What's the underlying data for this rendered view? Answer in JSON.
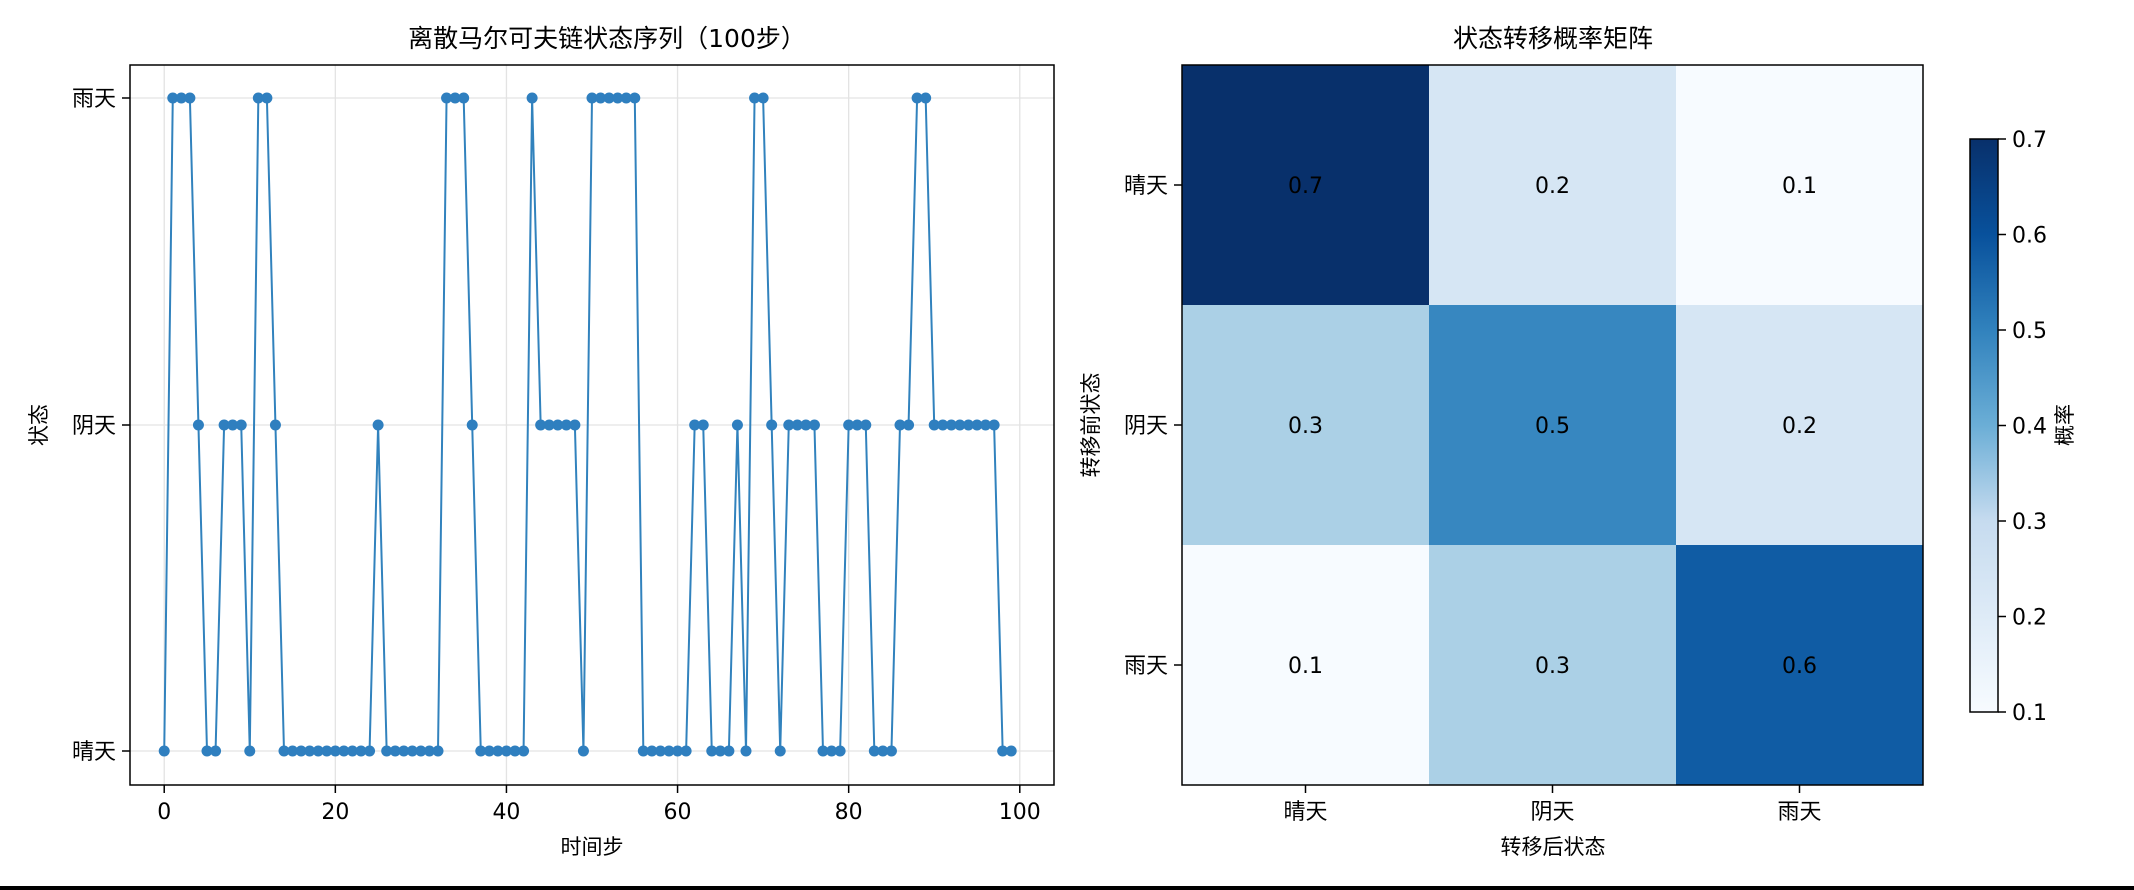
{
  "chart_data": [
    {
      "type": "line",
      "title": "离散马尔可夫链状态序列（100步）",
      "xlabel": "时间步",
      "ylabel": "状态",
      "xlim": [
        -4,
        104
      ],
      "xticks": [
        0,
        20,
        40,
        60,
        80,
        100
      ],
      "y_categories": [
        "晴天",
        "阴天",
        "雨天"
      ],
      "marker": "circle",
      "color": "#3182bd",
      "grid": true,
      "x": [
        0,
        1,
        2,
        3,
        4,
        5,
        6,
        7,
        8,
        9,
        10,
        11,
        12,
        13,
        14,
        15,
        16,
        17,
        18,
        19,
        20,
        21,
        22,
        23,
        24,
        25,
        26,
        27,
        28,
        29,
        30,
        31,
        32,
        33,
        34,
        35,
        36,
        37,
        38,
        39,
        40,
        41,
        42,
        43,
        44,
        45,
        46,
        47,
        48,
        49,
        50,
        51,
        52,
        53,
        54,
        55,
        56,
        57,
        58,
        59,
        60,
        61,
        62,
        63,
        64,
        65,
        66,
        67,
        68,
        69,
        70,
        71,
        72,
        73,
        74,
        75,
        76,
        77,
        78,
        79,
        80,
        81,
        82,
        83,
        84,
        85,
        86,
        87,
        88,
        89,
        90,
        91,
        92,
        93,
        94,
        95,
        96,
        97,
        98,
        99
      ],
      "y": [
        0,
        2,
        2,
        2,
        1,
        0,
        0,
        1,
        1,
        1,
        0,
        2,
        2,
        1,
        0,
        0,
        0,
        0,
        0,
        0,
        0,
        0,
        0,
        0,
        0,
        1,
        0,
        0,
        0,
        0,
        0,
        0,
        0,
        2,
        2,
        2,
        1,
        0,
        0,
        0,
        0,
        0,
        0,
        2,
        1,
        1,
        1,
        1,
        1,
        0,
        2,
        2,
        2,
        2,
        2,
        2,
        0,
        0,
        0,
        0,
        0,
        0,
        1,
        1,
        0,
        0,
        0,
        1,
        0,
        2,
        2,
        1,
        0,
        1,
        1,
        1,
        1,
        0,
        0,
        0,
        1,
        1,
        1,
        0,
        0,
        0,
        1,
        1,
        2,
        2,
        1,
        1,
        1,
        1,
        1,
        1,
        1,
        1,
        0,
        0
      ]
    },
    {
      "type": "heatmap",
      "title": "状态转移概率矩阵",
      "xlabel": "转移后状态",
      "ylabel": "转移前状态",
      "x_categories": [
        "晴天",
        "阴天",
        "雨天"
      ],
      "y_categories": [
        "晴天",
        "阴天",
        "雨天"
      ],
      "values": [
        [
          0.7,
          0.2,
          0.1
        ],
        [
          0.3,
          0.5,
          0.2
        ],
        [
          0.1,
          0.3,
          0.6
        ]
      ],
      "colormap": "Blues",
      "colorbar": {
        "label": "概率",
        "min": 0.1,
        "max": 0.7,
        "ticks": [
          0.1,
          0.2,
          0.3,
          0.4,
          0.5,
          0.6,
          0.7
        ]
      }
    }
  ]
}
